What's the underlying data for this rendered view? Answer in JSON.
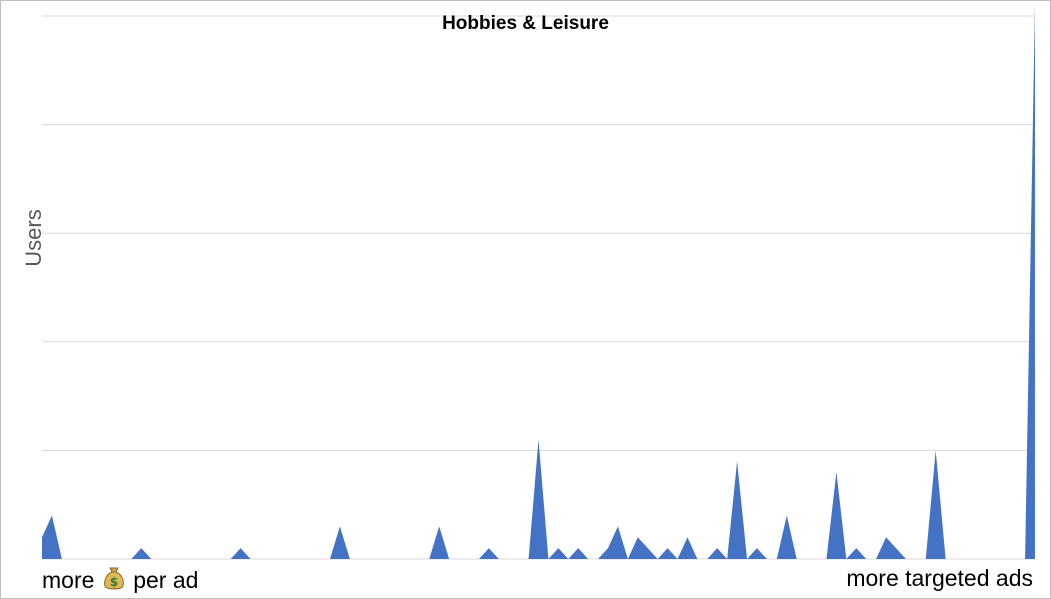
{
  "chart_data": {
    "type": "area",
    "title": "Hobbies & Leisure",
    "ylabel": "Users",
    "xlabel_left": {
      "before": "more",
      "icon": "money-bag-icon",
      "after": "per ad"
    },
    "xlabel_right": "more targeted ads",
    "grid": true,
    "ylim": [
      0,
      5
    ],
    "series": [
      {
        "color": "#4472c4",
        "values": [
          0.2,
          0.4,
          0,
          0,
          0,
          0,
          0,
          0,
          0,
          0,
          0.1,
          0,
          0,
          0,
          0,
          0,
          0,
          0,
          0,
          0,
          0.1,
          0,
          0,
          0,
          0,
          0,
          0,
          0,
          0,
          0,
          0.3,
          0,
          0,
          0,
          0,
          0,
          0,
          0,
          0,
          0,
          0.3,
          0,
          0,
          0,
          0,
          0.1,
          0,
          0,
          0,
          0,
          1.1,
          0,
          0.1,
          0,
          0.1,
          0,
          0,
          0.1,
          0.3,
          0,
          0.2,
          0.1,
          0,
          0.1,
          0,
          0.2,
          0,
          0,
          0.1,
          0,
          0.9,
          0,
          0.1,
          0,
          0,
          0.4,
          0,
          0,
          0,
          0,
          0.8,
          0,
          0.1,
          0,
          0,
          0.2,
          0.1,
          0,
          0,
          0,
          1.0,
          0,
          0,
          0,
          0,
          0,
          0,
          0,
          0,
          0,
          5.1
        ]
      }
    ]
  }
}
